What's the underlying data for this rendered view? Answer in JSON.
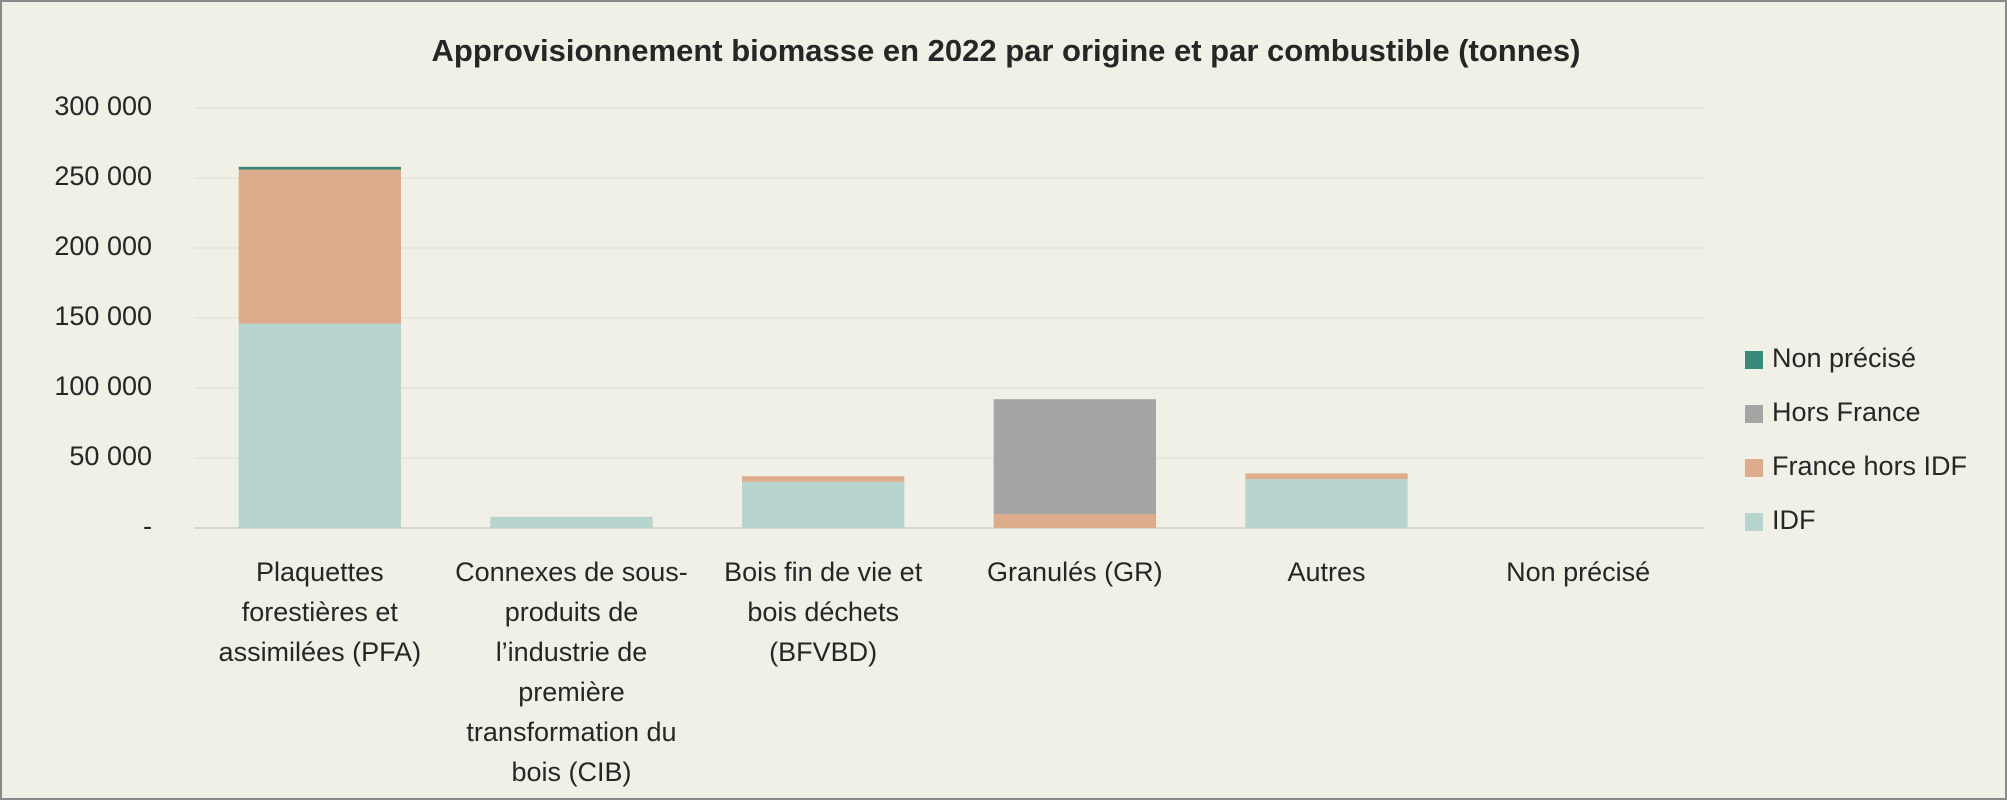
{
  "chart_data": {
    "type": "bar",
    "stacked": true,
    "title": "Approvisionnement biomasse en 2022 par origine et par combustible (tonnes)",
    "categories": [
      "Plaquettes forestières et assimilées (PFA)",
      "Connexes de sous-produits de l’industrie de première transformation du bois (CIB)",
      "Bois fin de vie et bois déchets (BFVBD)",
      "Granulés (GR)",
      "Autres",
      "Non précisé"
    ],
    "series": [
      {
        "name": "IDF",
        "color": "#b8d4cf",
        "values": [
          146000,
          8000,
          33000,
          0,
          35000,
          0
        ]
      },
      {
        "name": "France hors IDF",
        "color": "#dcac8c",
        "values": [
          110000,
          0,
          4000,
          10000,
          4000,
          0
        ]
      },
      {
        "name": "Hors France",
        "color": "#a5a5a5",
        "values": [
          0,
          0,
          0,
          82000,
          0,
          0
        ]
      },
      {
        "name": "Non précisé",
        "color": "#3a8a7a",
        "values": [
          2000,
          0,
          0,
          0,
          0,
          0
        ]
      }
    ],
    "ylim": [
      0,
      300000
    ],
    "yticks": [
      {
        "value": 0,
        "label": "-"
      },
      {
        "value": 50000,
        "label": "50 000"
      },
      {
        "value": 100000,
        "label": "100 000"
      },
      {
        "value": 150000,
        "label": "150 000"
      },
      {
        "value": 200000,
        "label": "200 000"
      },
      {
        "value": 250000,
        "label": "250 000"
      },
      {
        "value": 300000,
        "label": "300 000"
      }
    ],
    "grid": true,
    "legend": "right"
  }
}
